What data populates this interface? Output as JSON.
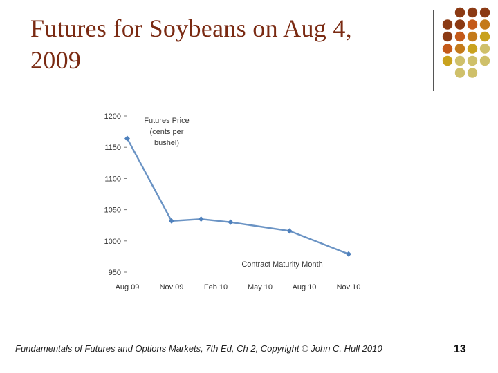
{
  "slide": {
    "title_line1": "Futures for Soybeans on Aug 4,",
    "title_line2": "2009",
    "footer": "Fundamentals of Futures and Options Markets, 7th Ed, Ch 2, Copyright © John C. Hull 2010",
    "page_number": "13"
  },
  "decoration": {
    "dot_colors": [
      [
        "",
        "#8b3a14",
        "#8b3a14",
        "#8b3a14"
      ],
      [
        "#8b3a14",
        "#8b3a14",
        "#c45a1a",
        "#c47a1a"
      ],
      [
        "#8b3a14",
        "#c45a1a",
        "#c47a1a",
        "#c9a21e"
      ],
      [
        "#c45a1a",
        "#c47a1a",
        "#c9a21e",
        "#cfc06a"
      ],
      [
        "#c9a21e",
        "#cfc06a",
        "#cfc06a",
        "#cfc06a"
      ],
      [
        "",
        "#cfc06a",
        "#cfc06a",
        ""
      ]
    ]
  },
  "chart_data": {
    "type": "line",
    "ylabel_lines": [
      "Futures Price",
      "(cents per",
      "bushel)"
    ],
    "xlabel": "Contract Maturity Month",
    "ylim": [
      950,
      1200
    ],
    "yticks": [
      "1200",
      "1150",
      "1100",
      "1050",
      "1000",
      "950"
    ],
    "ytick_values": [
      1200,
      1150,
      1100,
      1050,
      1000,
      950
    ],
    "xticks": [
      "Aug 09",
      "Nov 09",
      "Feb 10",
      "May 10",
      "Aug 10",
      "Nov 10"
    ],
    "x": [
      "Aug 09",
      "Nov 09",
      "Jan 10",
      "Mar 10",
      "Jul 10",
      "Nov 10"
    ],
    "values": [
      1164,
      1032,
      1035,
      1030,
      1016,
      979
    ],
    "line_color": "#6a93c4",
    "marker_color": "#4f81bd"
  }
}
